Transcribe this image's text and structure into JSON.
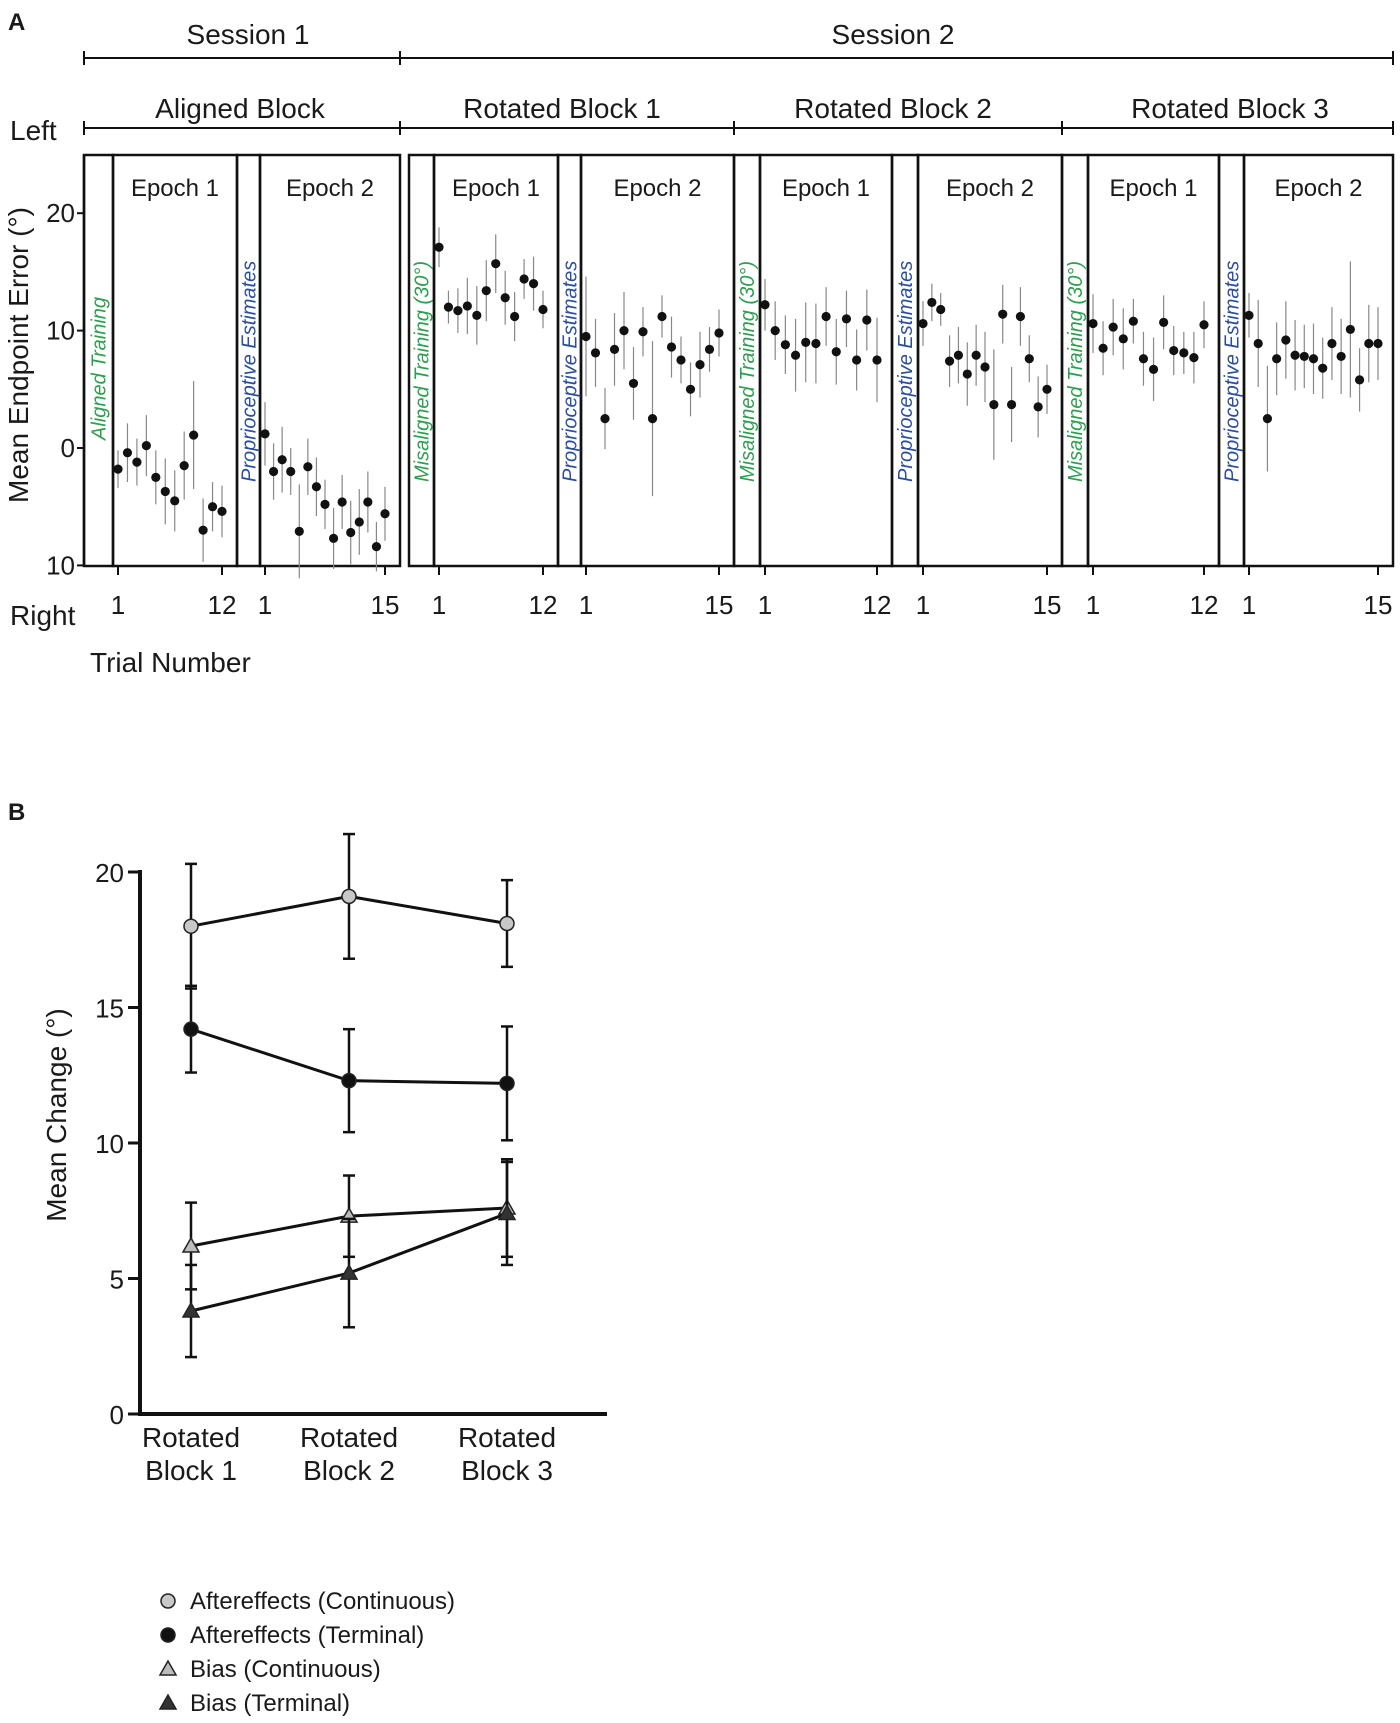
{
  "figure": {
    "panel_a_label": "A",
    "panel_b_label": "B"
  },
  "chart_data": [
    {
      "type": "scatter",
      "panel": "A",
      "ylabel": "Mean Endpoint Error (°)",
      "xlabel": "Trial Number",
      "ylim": [
        -10,
        25
      ],
      "yticks": [
        {
          "value": 20,
          "label": "20"
        },
        {
          "value": 10,
          "label": "10"
        },
        {
          "value": 0,
          "label": "0"
        },
        {
          "value": -10,
          "label": "10"
        }
      ],
      "y_direction_labels": {
        "top": "Left",
        "bottom": "Right"
      },
      "sessions": [
        "Session 1",
        "Session 2"
      ],
      "blocks": [
        {
          "name": "Aligned Block",
          "training_label": "Aligned Training",
          "prop_label": "Proprioceptive Estimates",
          "epochs": [
            {
              "label": "Epoch 1",
              "first_tick": "1",
              "last_tick": "12",
              "points": [
                [
                  -1.8,
                  1.6
                ],
                [
                  -0.4,
                  2.5
                ],
                [
                  -1.2,
                  2.0
                ],
                [
                  0.2,
                  2.6
                ],
                [
                  -2.5,
                  2.3
                ],
                [
                  -3.7,
                  2.8
                ],
                [
                  -4.5,
                  2.6
                ],
                [
                  -1.5,
                  2.9
                ],
                [
                  1.1,
                  4.6
                ],
                [
                  -7.0,
                  2.7
                ],
                [
                  -5.0,
                  2.1
                ],
                [
                  -5.4,
                  2.2
                ]
              ]
            },
            {
              "label": "Epoch 2",
              "first_tick": "1",
              "last_tick": "15",
              "points": [
                [
                  1.2,
                  2.7
                ],
                [
                  -2.0,
                  2.4
                ],
                [
                  -1.0,
                  2.8
                ],
                [
                  -2.0,
                  2.0
                ],
                [
                  -7.1,
                  4.0
                ],
                [
                  -1.6,
                  2.4
                ],
                [
                  -3.3,
                  2.5
                ],
                [
                  -4.8,
                  2.1
                ],
                [
                  -7.7,
                  2.6
                ],
                [
                  -4.6,
                  2.3
                ],
                [
                  -7.2,
                  2.7
                ],
                [
                  -6.3,
                  2.8
                ],
                [
                  -4.6,
                  2.6
                ],
                [
                  -8.4,
                  2.1
                ],
                [
                  -5.6,
                  2.3
                ]
              ]
            }
          ]
        },
        {
          "name": "Rotated Block 1",
          "training_label": "Misaligned Training (30°)",
          "prop_label": "Proprioceptive Estimates",
          "epochs": [
            {
              "label": "Epoch 1",
              "first_tick": "1",
              "last_tick": "12",
              "points": [
                [
                  17.1,
                  1.7
                ],
                [
                  12.0,
                  1.4
                ],
                [
                  11.7,
                  1.9
                ],
                [
                  12.1,
                  2.4
                ],
                [
                  11.3,
                  2.5
                ],
                [
                  13.4,
                  2.6
                ],
                [
                  15.7,
                  2.5
                ],
                [
                  12.8,
                  2.3
                ],
                [
                  11.2,
                  2.1
                ],
                [
                  14.4,
                  1.7
                ],
                [
                  14.0,
                  2.3
                ],
                [
                  11.8,
                  1.6
                ]
              ]
            },
            {
              "label": "Epoch 2",
              "first_tick": "1",
              "last_tick": "15",
              "points": [
                [
                  9.5,
                  5.1
                ],
                [
                  8.1,
                  2.9
                ],
                [
                  2.5,
                  2.6
                ],
                [
                  8.4,
                  3.1
                ],
                [
                  10.0,
                  3.3
                ],
                [
                  5.5,
                  3.1
                ],
                [
                  9.9,
                  2.1
                ],
                [
                  2.5,
                  6.6
                ],
                [
                  11.2,
                  1.8
                ],
                [
                  8.6,
                  2.6
                ],
                [
                  7.5,
                  2.0
                ],
                [
                  5.0,
                  2.3
                ],
                [
                  7.1,
                  2.8
                ],
                [
                  8.4,
                  1.9
                ],
                [
                  9.8,
                  2.0
                ]
              ]
            }
          ]
        },
        {
          "name": "Rotated Block 2",
          "training_label": "Misaligned Training (30°)",
          "prop_label": "Proprioceptive Estimates",
          "epochs": [
            {
              "label": "Epoch 1",
              "first_tick": "1",
              "last_tick": "12",
              "points": [
                [
                  12.2,
                  2.2
                ],
                [
                  10.0,
                  2.5
                ],
                [
                  8.8,
                  2.5
                ],
                [
                  7.9,
                  3.1
                ],
                [
                  9.0,
                  3.4
                ],
                [
                  8.9,
                  3.4
                ],
                [
                  11.2,
                  2.5
                ],
                [
                  8.2,
                  2.8
                ],
                [
                  11.0,
                  2.4
                ],
                [
                  7.5,
                  2.6
                ],
                [
                  10.9,
                  2.6
                ],
                [
                  7.5,
                  3.6
                ]
              ]
            },
            {
              "label": "Epoch 2",
              "first_tick": "1",
              "last_tick": "15",
              "points": [
                [
                  10.6,
                  1.9
                ],
                [
                  12.4,
                  1.6
                ],
                [
                  11.8,
                  1.4
                ],
                [
                  7.4,
                  2.2
                ],
                [
                  7.9,
                  2.4
                ],
                [
                  6.3,
                  2.7
                ],
                [
                  7.9,
                  2.6
                ],
                [
                  6.9,
                  3.0
                ],
                [
                  3.7,
                  4.7
                ],
                [
                  11.4,
                  2.5
                ],
                [
                  3.7,
                  3.2
                ],
                [
                  11.2,
                  2.5
                ],
                [
                  7.6,
                  2.0
                ],
                [
                  3.5,
                  2.6
                ],
                [
                  5.0,
                  2.1
                ]
              ]
            }
          ]
        },
        {
          "name": "Rotated Block 3",
          "training_label": "Misaligned Training (30°)",
          "prop_label": "Proprioceptive Estimates",
          "epochs": [
            {
              "label": "Epoch 1",
              "first_tick": "1",
              "last_tick": "12",
              "points": [
                [
                  10.6,
                  2.5
                ],
                [
                  8.5,
                  2.3
                ],
                [
                  10.3,
                  2.4
                ],
                [
                  9.3,
                  2.6
                ],
                [
                  10.8,
                  1.9
                ],
                [
                  7.6,
                  2.3
                ],
                [
                  6.7,
                  2.7
                ],
                [
                  10.7,
                  2.3
                ],
                [
                  8.3,
                  2.1
                ],
                [
                  8.1,
                  1.8
                ],
                [
                  7.7,
                  2.2
                ],
                [
                  10.5,
                  2.0
                ]
              ]
            },
            {
              "label": "Epoch 2",
              "first_tick": "1",
              "last_tick": "15",
              "points": [
                [
                  11.3,
                  1.9
                ],
                [
                  8.9,
                  3.7
                ],
                [
                  2.5,
                  4.5
                ],
                [
                  7.6,
                  3.1
                ],
                [
                  9.2,
                  3.3
                ],
                [
                  7.9,
                  3.0
                ],
                [
                  7.8,
                  2.7
                ],
                [
                  7.6,
                  3.0
                ],
                [
                  6.8,
                  2.6
                ],
                [
                  8.9,
                  3.1
                ],
                [
                  7.8,
                  3.2
                ],
                [
                  10.1,
                  5.8
                ],
                [
                  5.8,
                  2.7
                ],
                [
                  8.9,
                  3.3
                ],
                [
                  8.9,
                  3.1
                ]
              ]
            }
          ]
        }
      ]
    },
    {
      "type": "line",
      "panel": "B",
      "ylabel": "Mean Change (°)",
      "ylim": [
        0,
        20
      ],
      "yticks": [
        0,
        5,
        10,
        15,
        20
      ],
      "categories": [
        "Rotated Block 1",
        "Rotated Block 2",
        "Rotated Block 3"
      ],
      "category_lines": [
        [
          "Rotated",
          "Block 1"
        ],
        [
          "Rotated",
          "Block 2"
        ],
        [
          "Rotated",
          "Block 3"
        ]
      ],
      "series": [
        {
          "name": "Aftereffects (Continuous)",
          "marker": "circle",
          "color": "#c8c8c8",
          "values": [
            18.0,
            19.1,
            18.1
          ],
          "errors": [
            2.3,
            2.3,
            1.6
          ]
        },
        {
          "name": "Aftereffects (Terminal)",
          "marker": "circle",
          "color": "#111111",
          "values": [
            14.2,
            12.3,
            12.2
          ],
          "errors": [
            1.6,
            1.9,
            2.1
          ]
        },
        {
          "name": "Bias (Continuous)",
          "marker": "triangle",
          "color": "#bdbdbd",
          "values": [
            6.2,
            7.3,
            7.6
          ],
          "errors": [
            1.6,
            1.5,
            1.8
          ]
        },
        {
          "name": "Bias (Terminal)",
          "marker": "triangle",
          "color": "#333333",
          "values": [
            3.8,
            5.2,
            7.4
          ],
          "errors": [
            1.7,
            2.0,
            1.9
          ]
        }
      ]
    }
  ]
}
